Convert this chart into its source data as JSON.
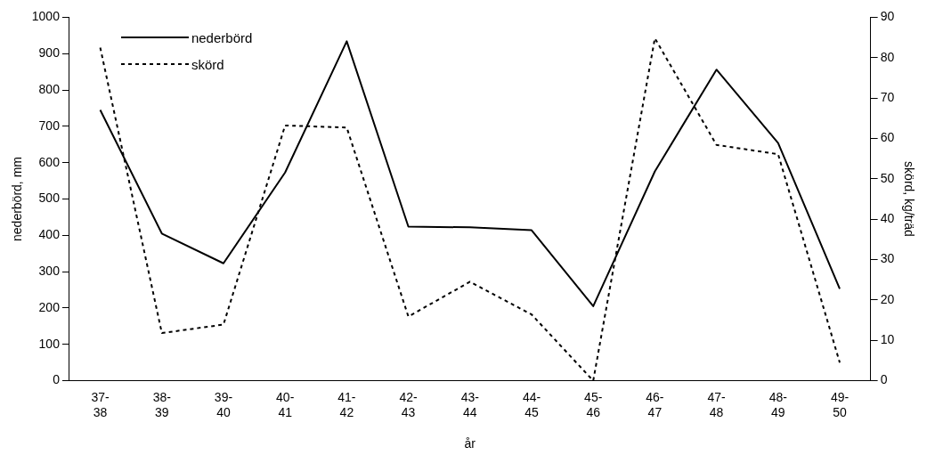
{
  "chart_data": {
    "type": "line",
    "xlabel": "år",
    "ylabel": "nederbörd, mm",
    "y2label": "skörd, kg/träd",
    "categories": [
      "37-38",
      "38-39",
      "39-40",
      "40-41",
      "41-42",
      "42-43",
      "43-44",
      "44-45",
      "45-46",
      "46-47",
      "47-48",
      "48-49",
      "49-50"
    ],
    "series": [
      {
        "name": "nederbörd",
        "color": "#000000",
        "line_style": "solid",
        "values": [
          745,
          405,
          323,
          573,
          934,
          424,
          422,
          414,
          205,
          576,
          856,
          654,
          253
        ]
      },
      {
        "name": "skörd",
        "color": "#000000",
        "line_style": "dashed",
        "axis": "y2",
        "values": [
          82.5,
          11.8,
          13.9,
          63.2,
          62.7,
          15.9,
          24.5,
          16.4,
          0,
          84.8,
          58.4,
          56.1,
          4.5
        ]
      }
    ],
    "ylim": [
      0,
      1000
    ],
    "yticks": [
      0,
      100,
      200,
      300,
      400,
      500,
      600,
      700,
      800,
      900,
      1000
    ],
    "y2lim": [
      0,
      90
    ],
    "y2ticks": [
      0,
      10,
      20,
      30,
      40,
      50,
      60,
      70,
      80,
      90
    ],
    "grid": false,
    "legend": "top left",
    "marker": "none"
  }
}
